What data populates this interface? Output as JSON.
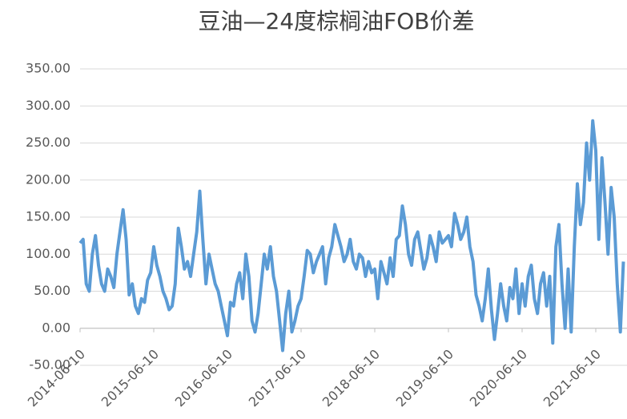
{
  "chart_data": {
    "type": "line",
    "title": "豆油—24度棕榈油FOB价差",
    "categories": [
      "2014-06-10",
      null,
      null,
      null,
      null,
      null,
      null,
      null,
      null,
      null,
      null,
      null,
      null,
      null,
      null,
      null,
      null,
      null,
      null,
      null,
      null,
      null,
      null,
      null,
      "2015-06-10",
      null,
      null,
      null,
      null,
      null,
      null,
      null,
      null,
      null,
      null,
      null,
      null,
      null,
      null,
      null,
      null,
      null,
      null,
      null,
      null,
      null,
      null,
      null,
      "2016-06-10",
      null,
      null,
      null,
      null,
      null,
      null,
      null,
      null,
      null,
      null,
      null,
      null,
      null,
      null,
      null,
      null,
      null,
      null,
      null,
      null,
      null,
      null,
      null,
      "2017-06-10",
      null,
      null,
      null,
      null,
      null,
      null,
      null,
      null,
      null,
      null,
      null,
      null,
      null,
      null,
      null,
      null,
      null,
      null,
      null,
      null,
      null,
      null,
      null,
      "2018-06-10",
      null,
      null,
      null,
      null,
      null,
      null,
      null,
      null,
      null,
      null,
      null,
      null,
      null,
      null,
      null,
      null,
      null,
      null,
      null,
      null,
      null,
      null,
      null,
      "2019-06-10",
      null,
      null,
      null,
      null,
      null,
      null,
      null,
      null,
      null,
      null,
      null,
      null,
      null,
      null,
      null,
      null,
      null,
      null,
      null,
      null,
      null,
      null,
      null,
      "2020-06-10",
      null,
      null,
      null,
      null,
      null,
      null,
      null,
      null,
      null,
      null,
      null,
      null,
      null,
      null,
      null,
      null,
      null,
      null,
      null,
      null,
      null,
      null,
      null,
      "2021-06-10",
      null,
      null,
      null,
      null,
      null,
      null,
      null,
      null,
      null
    ],
    "series": [
      {
        "color": "#5b9bd5",
        "values": [
          115,
          120,
          60,
          50,
          100,
          125,
          85,
          60,
          50,
          80,
          70,
          55,
          100,
          130,
          160,
          120,
          45,
          60,
          30,
          20,
          40,
          35,
          65,
          75,
          110,
          85,
          70,
          50,
          40,
          25,
          30,
          60,
          135,
          110,
          80,
          90,
          70,
          100,
          130,
          185,
          120,
          60,
          100,
          80,
          60,
          50,
          30,
          10,
          -10,
          35,
          30,
          60,
          75,
          40,
          100,
          70,
          10,
          -5,
          20,
          60,
          100,
          80,
          110,
          70,
          50,
          10,
          -30,
          20,
          50,
          -5,
          10,
          30,
          40,
          70,
          105,
          100,
          75,
          90,
          100,
          110,
          60,
          95,
          110,
          140,
          125,
          110,
          90,
          100,
          120,
          90,
          80,
          100,
          95,
          70,
          90,
          75,
          80,
          40,
          90,
          75,
          60,
          95,
          70,
          120,
          125,
          165,
          140,
          100,
          85,
          120,
          130,
          105,
          80,
          95,
          125,
          110,
          90,
          130,
          115,
          120,
          125,
          110,
          155,
          140,
          120,
          130,
          150,
          110,
          90,
          45,
          30,
          10,
          40,
          80,
          25,
          -15,
          20,
          60,
          30,
          10,
          55,
          40,
          80,
          20,
          60,
          30,
          70,
          85,
          40,
          20,
          60,
          75,
          30,
          70,
          -20,
          110,
          140,
          60,
          0,
          80,
          -5,
          110,
          195,
          140,
          170,
          250,
          200,
          280,
          240,
          120,
          230,
          170,
          100,
          190,
          150,
          60,
          -5,
          90
        ]
      }
    ],
    "ylim": [
      -50,
      350
    ],
    "yticks": [
      {
        "value": -50,
        "label": "-50.00"
      },
      {
        "value": 0,
        "label": "0.00"
      },
      {
        "value": 50,
        "label": "50.00"
      },
      {
        "value": 100,
        "label": "100.00"
      },
      {
        "value": 150,
        "label": "150.00"
      },
      {
        "value": 200,
        "label": "200.00"
      },
      {
        "value": 250,
        "label": "250.00"
      },
      {
        "value": 300,
        "label": "300.00"
      },
      {
        "value": 350,
        "label": "350.00"
      }
    ],
    "grid": true
  }
}
